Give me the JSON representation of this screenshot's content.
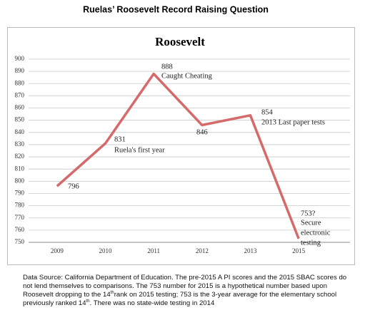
{
  "header": {
    "title": "Ruelas’ Roosevelt Record Raising Question"
  },
  "chart_data": {
    "type": "line",
    "title": "Roosevelt",
    "categories": [
      "2009",
      "2010",
      "2011",
      "2012",
      "2013",
      "2015"
    ],
    "series": [
      {
        "name": "Roosevelt",
        "color": "#d46a6a",
        "values": [
          796,
          831,
          888,
          846,
          854,
          753
        ],
        "value_labels": [
          "796",
          "831",
          "888",
          "846",
          "854",
          "753?"
        ]
      }
    ],
    "annotations": [
      "Ruela's first year",
      "Caught Cheating",
      "2013 Last paper tests",
      "Secure",
      "electronic",
      "testing"
    ],
    "ylim": [
      750,
      900
    ],
    "yticks": [
      750,
      760,
      770,
      780,
      790,
      800,
      810,
      820,
      830,
      840,
      850,
      860,
      870,
      880,
      890,
      900
    ],
    "grid": true,
    "legend": false
  },
  "footer": {
    "parts": [
      "Data Source:  California Department of Education.  The pre-2015 A PI scores and the 2015 SBAC scores do not lend themselves to comparisons. The 753 number for 2015 is a hypothetical number based upon Roosevelt dropping to the 14",
      "th",
      "rank on 2015 testing; 753 is the 3-year average for the elementary school previously ranked 14",
      "th",
      ". There was no state-wide testing in 2014"
    ]
  }
}
